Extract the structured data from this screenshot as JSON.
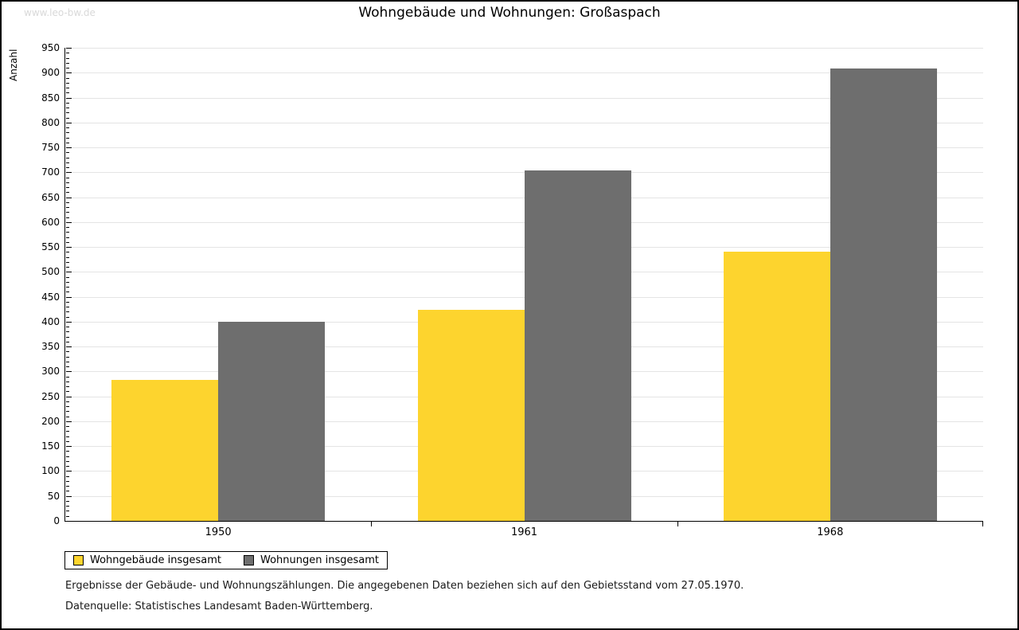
{
  "watermark": "www.leo-bw.de",
  "chart": {
    "title": "Wohngebäude und Wohnungen: Großaspach",
    "ylabel": "Anzahl"
  },
  "chart_data": {
    "type": "bar",
    "categories": [
      "1950",
      "1961",
      "1968"
    ],
    "series": [
      {
        "name": "Wohngebäude insgesamt",
        "color": "#FDD42E",
        "values": [
          283,
          424,
          540
        ]
      },
      {
        "name": "Wohnungen insgesamt",
        "color": "#6E6E6E",
        "values": [
          400,
          703,
          908
        ]
      }
    ],
    "xlabel": "",
    "ylabel": "Anzahl",
    "ylim": [
      0,
      950
    ],
    "ytick_step": 50,
    "minor_tick_step": 10,
    "grid": true,
    "legend_position": "bottom-left"
  },
  "footnotes": [
    "Ergebnisse der Gebäude- und Wohnungszählungen. Die angegebenen Daten beziehen sich auf den Gebietsstand vom 27.05.1970.",
    "Datenquelle: Statistisches Landesamt Baden-Württemberg."
  ]
}
